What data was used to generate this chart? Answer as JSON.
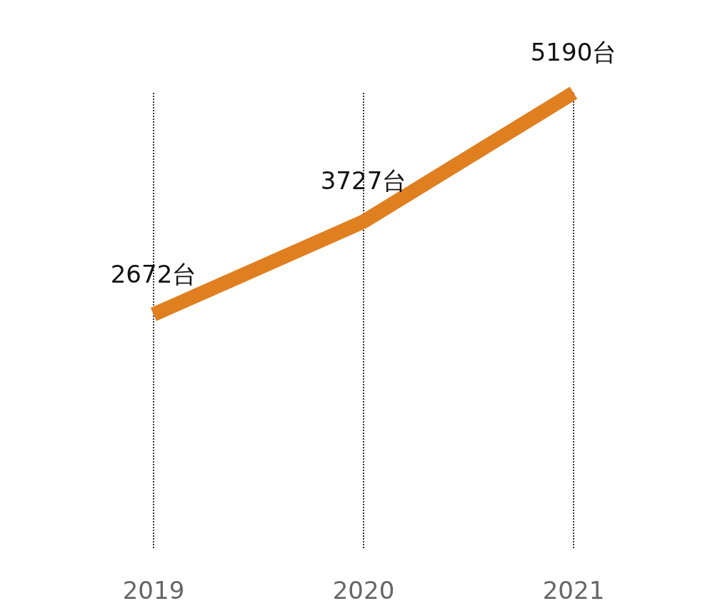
{
  "chart_data": {
    "type": "line",
    "categories": [
      "2019",
      "2020",
      "2021"
    ],
    "series": [
      {
        "color": "#e07f20",
        "values": [
          2672,
          3727,
          5190
        ],
        "value_labels": [
          "2672台",
          "3727台",
          "5190台"
        ]
      }
    ],
    "grid": "x",
    "marker": "none"
  }
}
